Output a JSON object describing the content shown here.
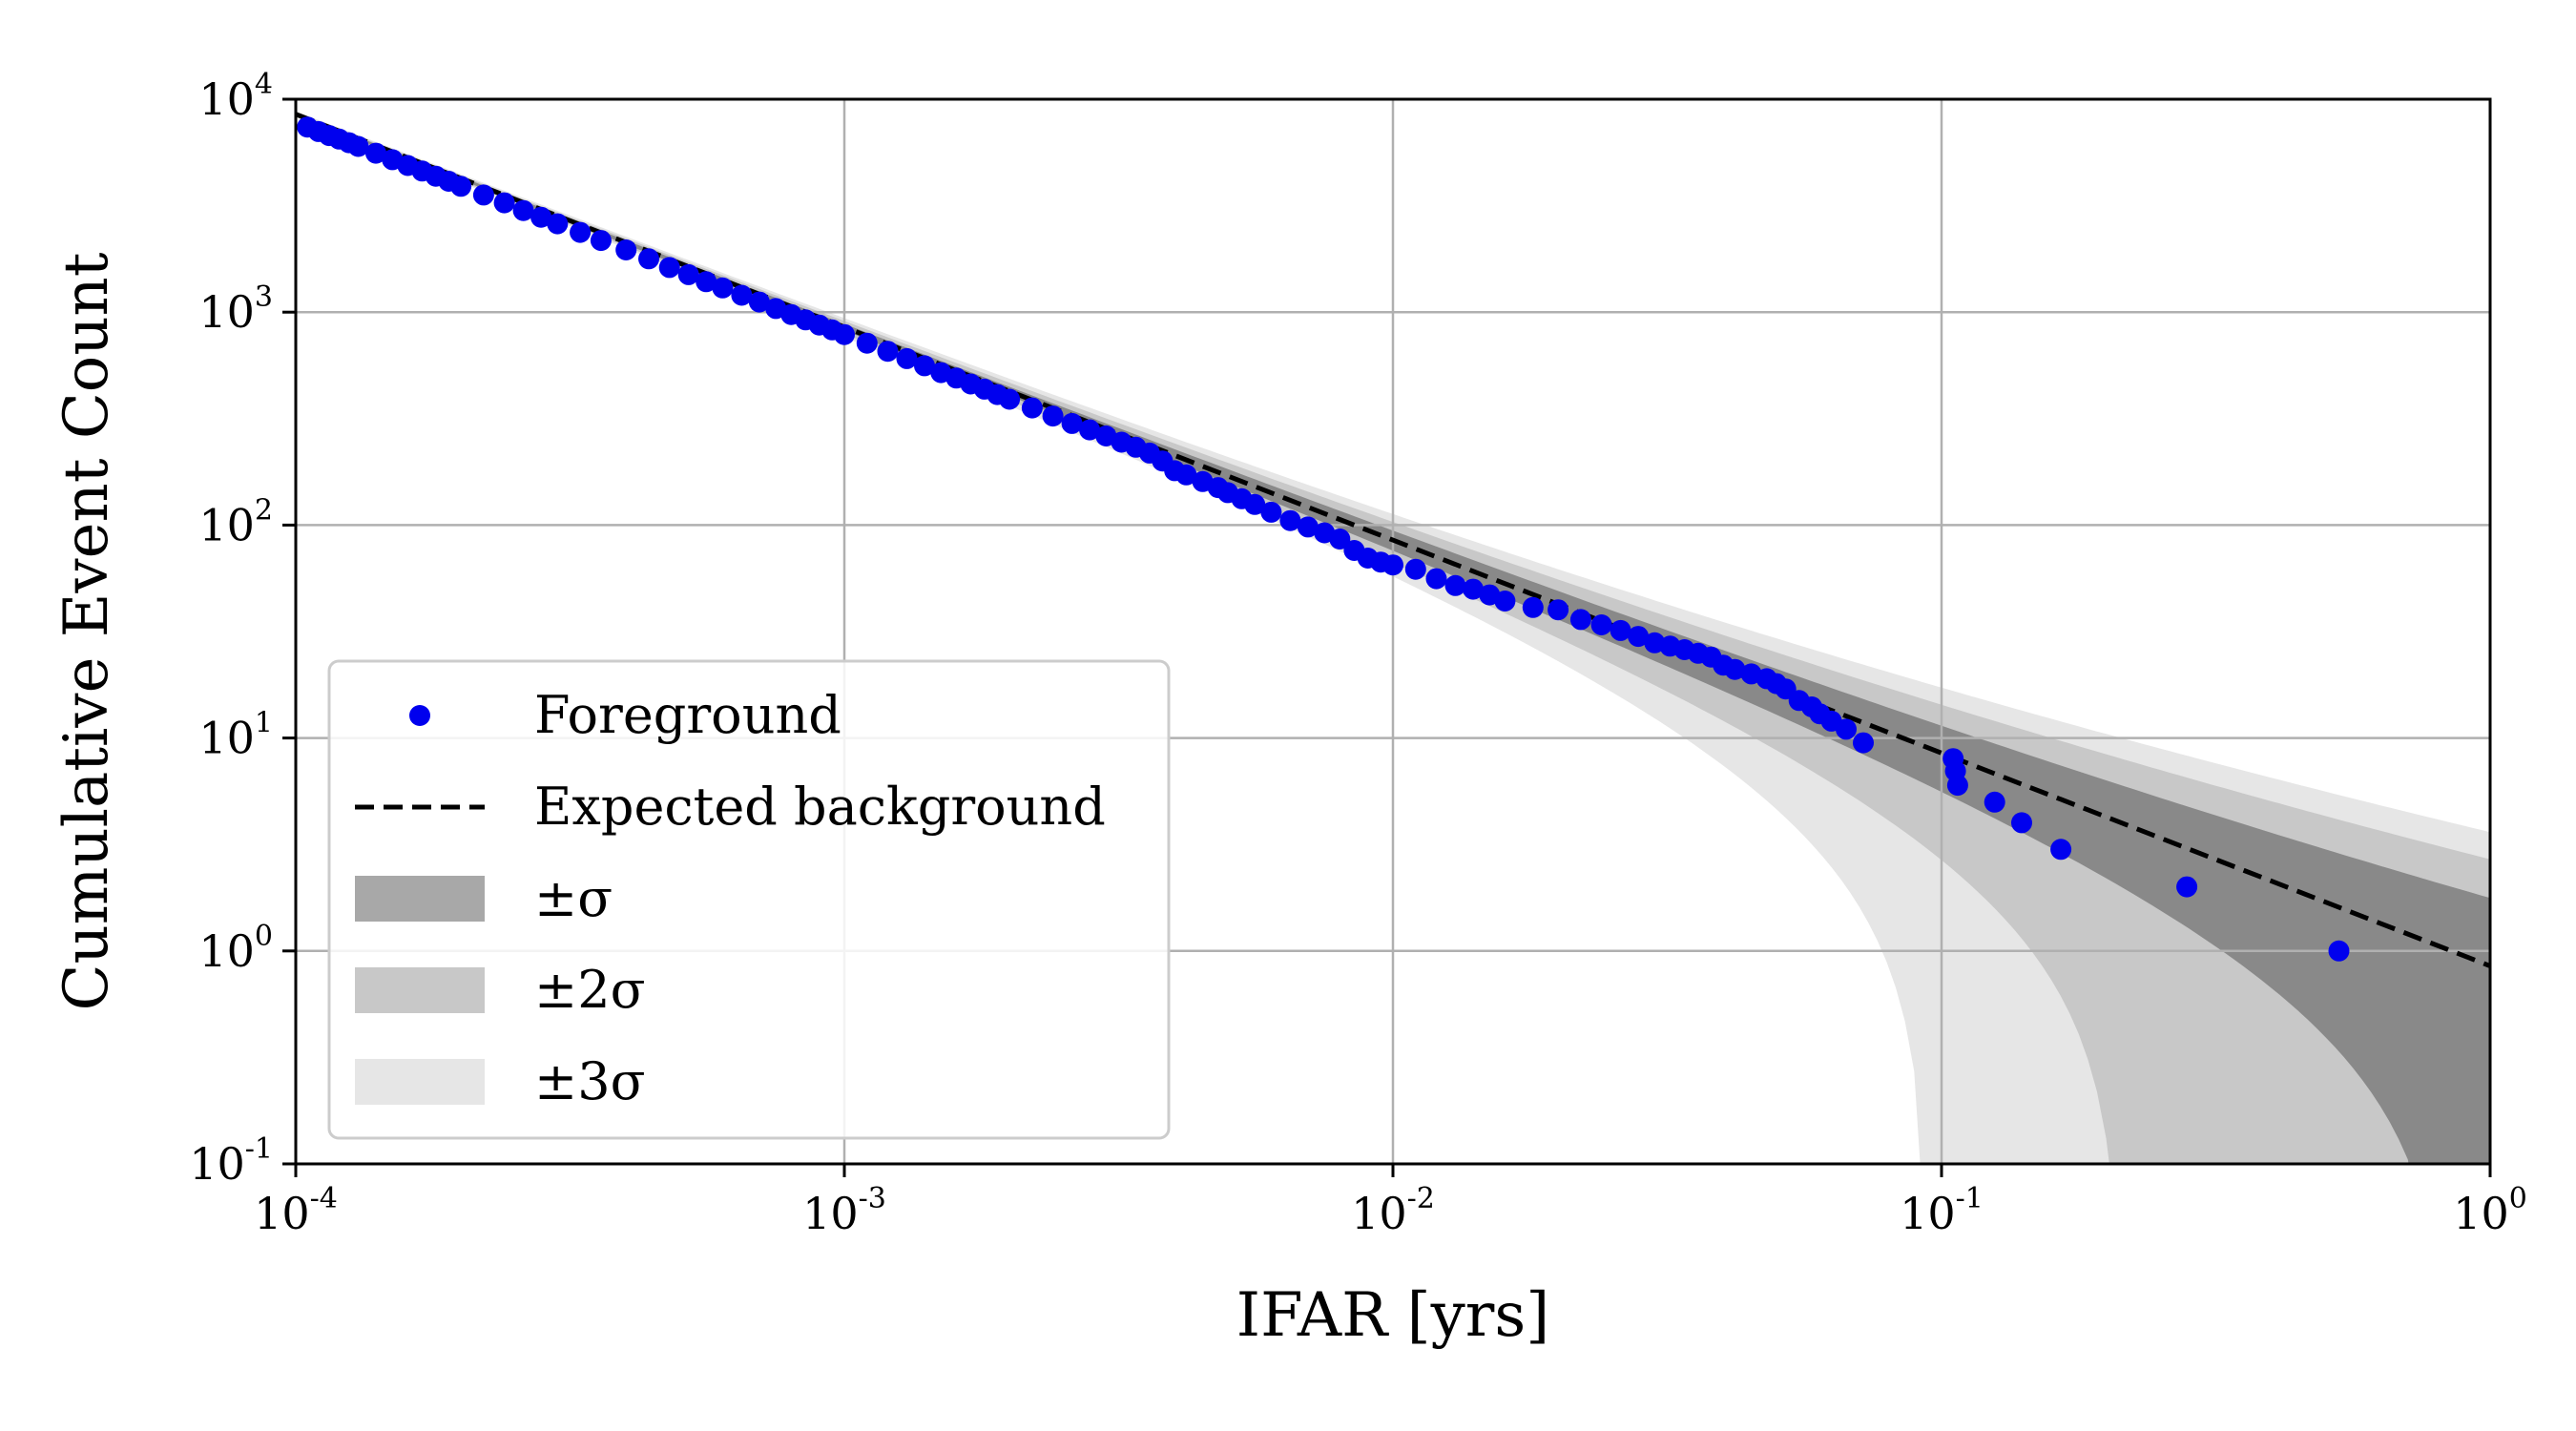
{
  "chart_data": {
    "type": "scatter",
    "xscale": "log",
    "yscale": "log",
    "xlim": [
      0.0001,
      1
    ],
    "ylim": [
      0.1,
      10000
    ],
    "xlabel": "IFAR [yrs]",
    "ylabel": "Cumulative Event Count",
    "grid": true,
    "legend_position": "lower-left",
    "x_ticks": [
      {
        "base": "10",
        "exp": "-4"
      },
      {
        "base": "10",
        "exp": "-3"
      },
      {
        "base": "10",
        "exp": "-2"
      },
      {
        "base": "10",
        "exp": "-1"
      },
      {
        "base": "10",
        "exp": "0"
      }
    ],
    "y_ticks": [
      {
        "base": "10",
        "exp": "-1"
      },
      {
        "base": "10",
        "exp": "0"
      },
      {
        "base": "10",
        "exp": "1"
      },
      {
        "base": "10",
        "exp": "2"
      },
      {
        "base": "10",
        "exp": "3"
      },
      {
        "base": "10",
        "exp": "4"
      }
    ],
    "expected_background": {
      "name": "Expected background",
      "style": "dashed",
      "color": "#000000",
      "points": [
        [
          0.0001,
          8500
        ],
        [
          1,
          0.85
        ]
      ]
    },
    "bands": [
      {
        "name": "±3σ",
        "sigma": 3,
        "color": "#e6e6e6"
      },
      {
        "name": "±2σ",
        "sigma": 2,
        "color": "#c8c8c8"
      },
      {
        "name": "±σ",
        "sigma": 1,
        "color": "#a8a8a8"
      }
    ],
    "foreground": {
      "name": "Foreground",
      "color": "#0000ee",
      "points": [
        [
          0.000105,
          7400
        ],
        [
          0.00011,
          7050
        ],
        [
          0.000115,
          6750
        ],
        [
          0.00012,
          6500
        ],
        [
          0.000125,
          6250
        ],
        [
          0.00013,
          6000
        ],
        [
          0.00014,
          5580
        ],
        [
          0.00015,
          5200
        ],
        [
          0.00016,
          4880
        ],
        [
          0.00017,
          4600
        ],
        [
          0.00018,
          4350
        ],
        [
          0.00019,
          4120
        ],
        [
          0.0002,
          3900
        ],
        [
          0.00022,
          3550
        ],
        [
          0.00024,
          3260
        ],
        [
          0.00026,
          3000
        ],
        [
          0.00028,
          2790
        ],
        [
          0.0003,
          2600
        ],
        [
          0.00033,
          2370
        ],
        [
          0.00036,
          2170
        ],
        [
          0.0004,
          1960
        ],
        [
          0.00044,
          1780
        ],
        [
          0.00048,
          1620
        ],
        [
          0.00052,
          1500
        ],
        [
          0.00056,
          1390
        ],
        [
          0.0006,
          1300
        ],
        [
          0.00065,
          1200
        ],
        [
          0.0007,
          1115
        ],
        [
          0.00075,
          1040
        ],
        [
          0.0008,
          975
        ],
        [
          0.00085,
          920
        ],
        [
          0.0009,
          870
        ],
        [
          0.00095,
          825
        ],
        [
          0.001,
          785
        ],
        [
          0.0011,
          715
        ],
        [
          0.0012,
          655
        ],
        [
          0.0013,
          605
        ],
        [
          0.0014,
          560
        ],
        [
          0.0015,
          520
        ],
        [
          0.0016,
          490
        ],
        [
          0.0017,
          460
        ],
        [
          0.0018,
          435
        ],
        [
          0.0019,
          410
        ],
        [
          0.002,
          390
        ],
        [
          0.0022,
          355
        ],
        [
          0.0024,
          325
        ],
        [
          0.0026,
          300
        ],
        [
          0.0028,
          280
        ],
        [
          0.003,
          262
        ],
        [
          0.0032,
          245
        ],
        [
          0.0034,
          232
        ],
        [
          0.0036,
          218
        ],
        [
          0.0038,
          200
        ],
        [
          0.004,
          180
        ],
        [
          0.0042,
          172
        ],
        [
          0.0045,
          160
        ],
        [
          0.0048,
          150
        ],
        [
          0.005,
          142
        ],
        [
          0.0053,
          133
        ],
        [
          0.0056,
          125
        ],
        [
          0.006,
          115
        ],
        [
          0.0065,
          105
        ],
        [
          0.007,
          98
        ],
        [
          0.0075,
          92
        ],
        [
          0.008,
          86
        ],
        [
          0.0085,
          76
        ],
        [
          0.009,
          70
        ],
        [
          0.0095,
          67
        ],
        [
          0.01,
          65
        ],
        [
          0.011,
          62
        ],
        [
          0.012,
          56
        ],
        [
          0.013,
          52
        ],
        [
          0.014,
          50
        ],
        [
          0.015,
          47
        ],
        [
          0.016,
          44
        ],
        [
          0.018,
          41
        ],
        [
          0.02,
          40
        ],
        [
          0.022,
          36
        ],
        [
          0.024,
          34
        ],
        [
          0.026,
          32
        ],
        [
          0.028,
          30
        ],
        [
          0.03,
          28
        ],
        [
          0.032,
          27
        ],
        [
          0.034,
          26
        ],
        [
          0.036,
          25
        ],
        [
          0.038,
          24
        ],
        [
          0.04,
          22
        ],
        [
          0.042,
          21
        ],
        [
          0.045,
          20
        ],
        [
          0.048,
          19
        ],
        [
          0.05,
          18
        ],
        [
          0.052,
          17
        ],
        [
          0.055,
          15
        ],
        [
          0.058,
          14
        ],
        [
          0.06,
          13
        ],
        [
          0.063,
          12
        ],
        [
          0.067,
          11
        ],
        [
          0.072,
          9.5
        ],
        [
          0.105,
          8
        ],
        [
          0.106,
          7
        ],
        [
          0.107,
          6
        ],
        [
          0.125,
          5
        ],
        [
          0.14,
          4
        ],
        [
          0.165,
          3
        ],
        [
          0.28,
          2
        ],
        [
          0.53,
          1
        ]
      ]
    },
    "legend": [
      {
        "label": "Foreground",
        "kind": "marker",
        "color": "#0000ee"
      },
      {
        "label": "Expected background",
        "kind": "dashed-line",
        "color": "#000000"
      },
      {
        "label": "±σ",
        "kind": "patch",
        "color": "#a8a8a8"
      },
      {
        "label": "±2σ",
        "kind": "patch",
        "color": "#c8c8c8"
      },
      {
        "label": "±3σ",
        "kind": "patch",
        "color": "#e6e6e6"
      }
    ]
  }
}
